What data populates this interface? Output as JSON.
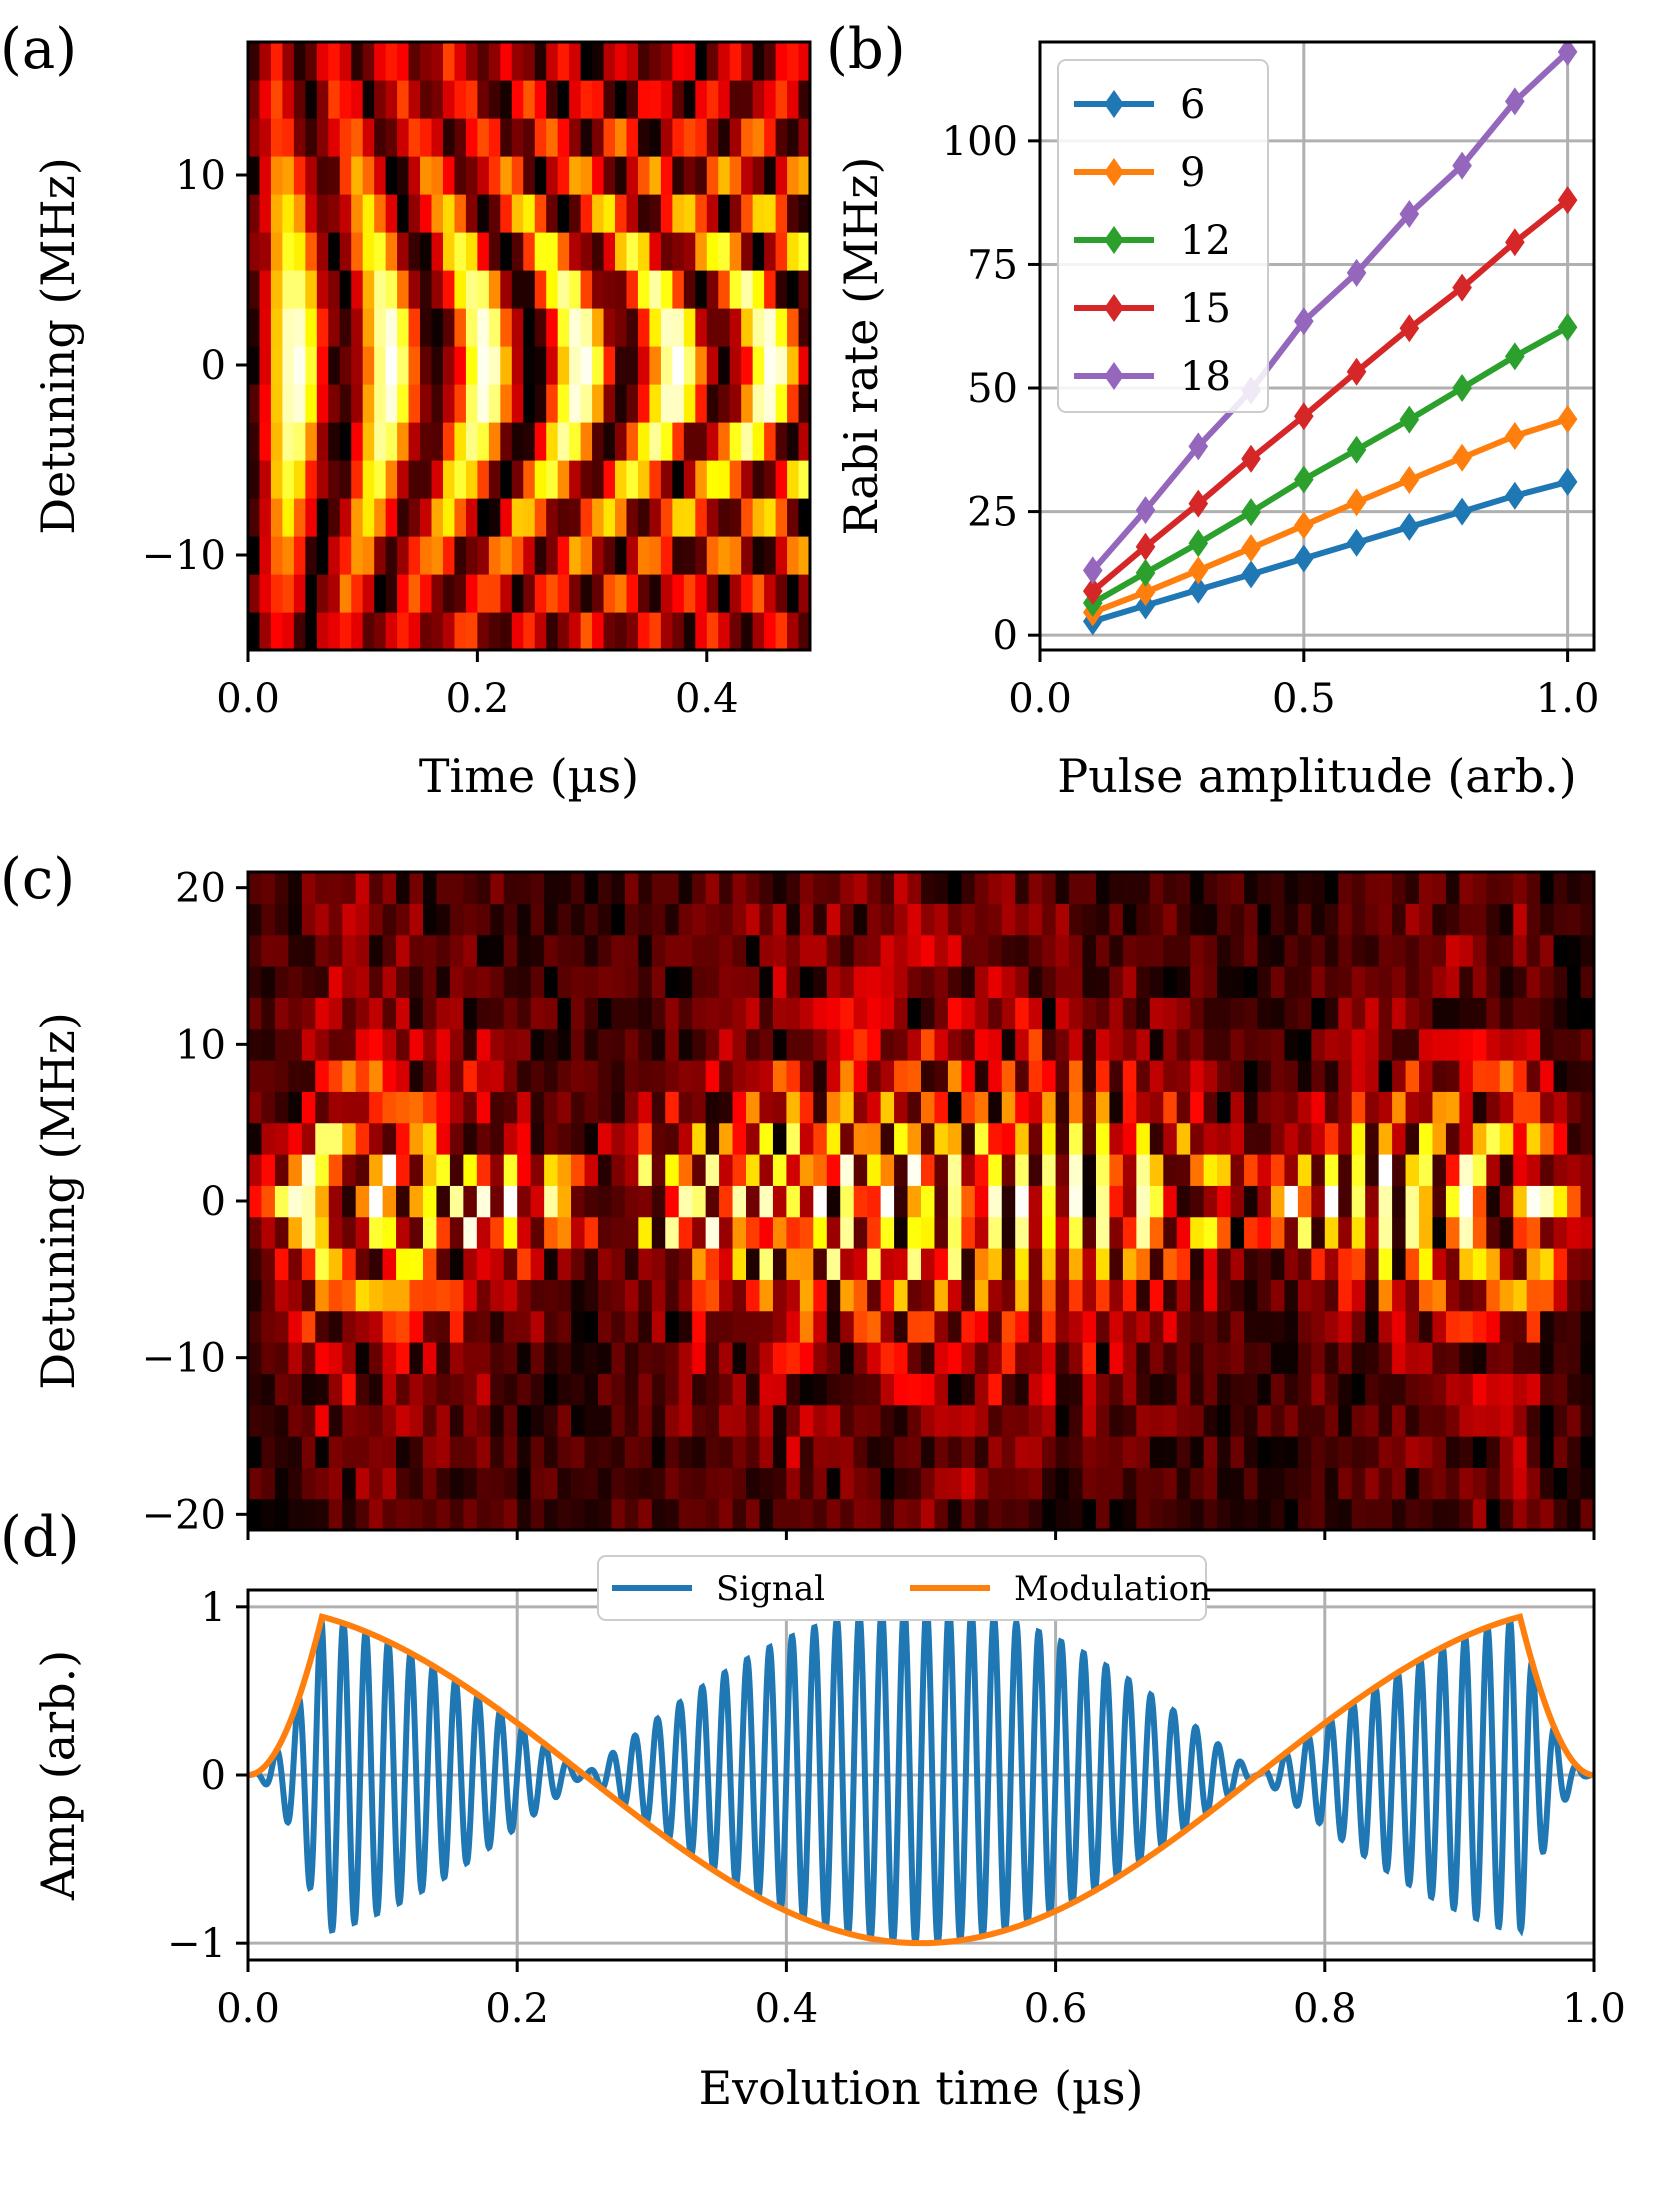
{
  "panels": {
    "a": {
      "tag": "(a)"
    },
    "b": {
      "tag": "(b)"
    },
    "c": {
      "tag": "(c)"
    },
    "d": {
      "tag": "(d)"
    }
  },
  "chart_data": [
    {
      "id": "a",
      "type": "heatmap",
      "xlabel": "Time (µs)",
      "ylabel": "Detuning (MHz)",
      "xlim": [
        0,
        0.49
      ],
      "ylim": [
        -15,
        17
      ],
      "xticks": [
        {
          "v": 0.0,
          "label": "0.0"
        },
        {
          "v": 0.2,
          "label": "0.2"
        },
        {
          "v": 0.4,
          "label": "0.4"
        }
      ],
      "yticks": [
        {
          "v": -10,
          "label": "−10"
        },
        {
          "v": 0,
          "label": "0"
        },
        {
          "v": 10,
          "label": "10"
        }
      ],
      "colormap": "hot",
      "model": "rabi_constant",
      "rabi_mhz": 12,
      "rows": 16,
      "cols": 49
    },
    {
      "id": "b",
      "type": "line",
      "xlabel": "Pulse amplitude (arb.)",
      "ylabel": "Rabi rate (MHz)",
      "xlim": [
        0,
        1.05
      ],
      "ylim": [
        -3,
        120
      ],
      "grid": true,
      "legend_position": "upper-left",
      "xticks": [
        {
          "v": 0.0,
          "label": "0.0"
        },
        {
          "v": 0.5,
          "label": "0.5"
        },
        {
          "v": 1.0,
          "label": "1.0"
        }
      ],
      "yticks": [
        {
          "v": 0,
          "label": "0"
        },
        {
          "v": 25,
          "label": "25"
        },
        {
          "v": 50,
          "label": "50"
        },
        {
          "v": 75,
          "label": "75"
        },
        {
          "v": 100,
          "label": "100"
        }
      ],
      "x": [
        0.1,
        0.2,
        0.3,
        0.4,
        0.5,
        0.6,
        0.7,
        0.8,
        0.9,
        1.0
      ],
      "series": [
        {
          "name": "6",
          "color": "#1f77b4",
          "values": [
            2.8,
            6.0,
            9.2,
            12.3,
            15.5,
            18.7,
            21.9,
            25.0,
            28.2,
            31.0
          ]
        },
        {
          "name": "9",
          "color": "#ff7f0e",
          "values": [
            4.6,
            8.7,
            13.1,
            17.6,
            22.2,
            26.9,
            31.4,
            35.9,
            40.3,
            43.7
          ]
        },
        {
          "name": "12",
          "color": "#2ca02c",
          "values": [
            6.5,
            12.6,
            18.6,
            24.9,
            31.5,
            37.5,
            43.6,
            50.0,
            56.4,
            62.3
          ]
        },
        {
          "name": "15",
          "color": "#d62728",
          "values": [
            8.9,
            17.9,
            26.6,
            35.7,
            44.3,
            53.3,
            62.1,
            70.3,
            79.5,
            88.0
          ]
        },
        {
          "name": "18",
          "color": "#9467bd",
          "values": [
            13.1,
            25.3,
            38.2,
            49.5,
            63.5,
            73.3,
            85.2,
            95.0,
            108.0,
            118.0
          ]
        }
      ]
    },
    {
      "id": "c",
      "type": "heatmap",
      "ylabel": "Detuning (MHz)",
      "xlim": [
        0,
        1.0
      ],
      "ylim": [
        -21,
        21
      ],
      "yticks": [
        {
          "v": -20,
          "label": "−20"
        },
        {
          "v": -10,
          "label": "−10"
        },
        {
          "v": 0,
          "label": "0"
        },
        {
          "v": 10,
          "label": "10"
        },
        {
          "v": 20,
          "label": "20"
        }
      ],
      "colormap": "hot",
      "model": "rabi_modulated",
      "rabi_mhz": 12,
      "rows": 21,
      "cols": 100
    },
    {
      "id": "d",
      "type": "line",
      "xlabel": "Evolution time (µs)",
      "ylabel": "Amp (arb.)",
      "xlim": [
        0,
        1.0
      ],
      "ylim": [
        -1.1,
        1.1
      ],
      "grid": true,
      "legend_position": "upper-center",
      "xticks": [
        {
          "v": 0.0,
          "label": "0.0"
        },
        {
          "v": 0.2,
          "label": "0.2"
        },
        {
          "v": 0.4,
          "label": "0.4"
        },
        {
          "v": 0.6,
          "label": "0.6"
        },
        {
          "v": 0.8,
          "label": "0.8"
        },
        {
          "v": 1.0,
          "label": "1.0"
        }
      ],
      "yticks": [
        {
          "v": -1,
          "label": "−1"
        },
        {
          "v": 0,
          "label": "0"
        },
        {
          "v": 1,
          "label": "1"
        }
      ],
      "carrier_cycles": 60,
      "series": [
        {
          "name": "Signal",
          "color": "#1f77b4",
          "model": "carrier_times_modulation"
        },
        {
          "name": "Modulation",
          "color": "#ff7f0e",
          "model": "cosine_with_ramped_edges"
        }
      ]
    }
  ]
}
